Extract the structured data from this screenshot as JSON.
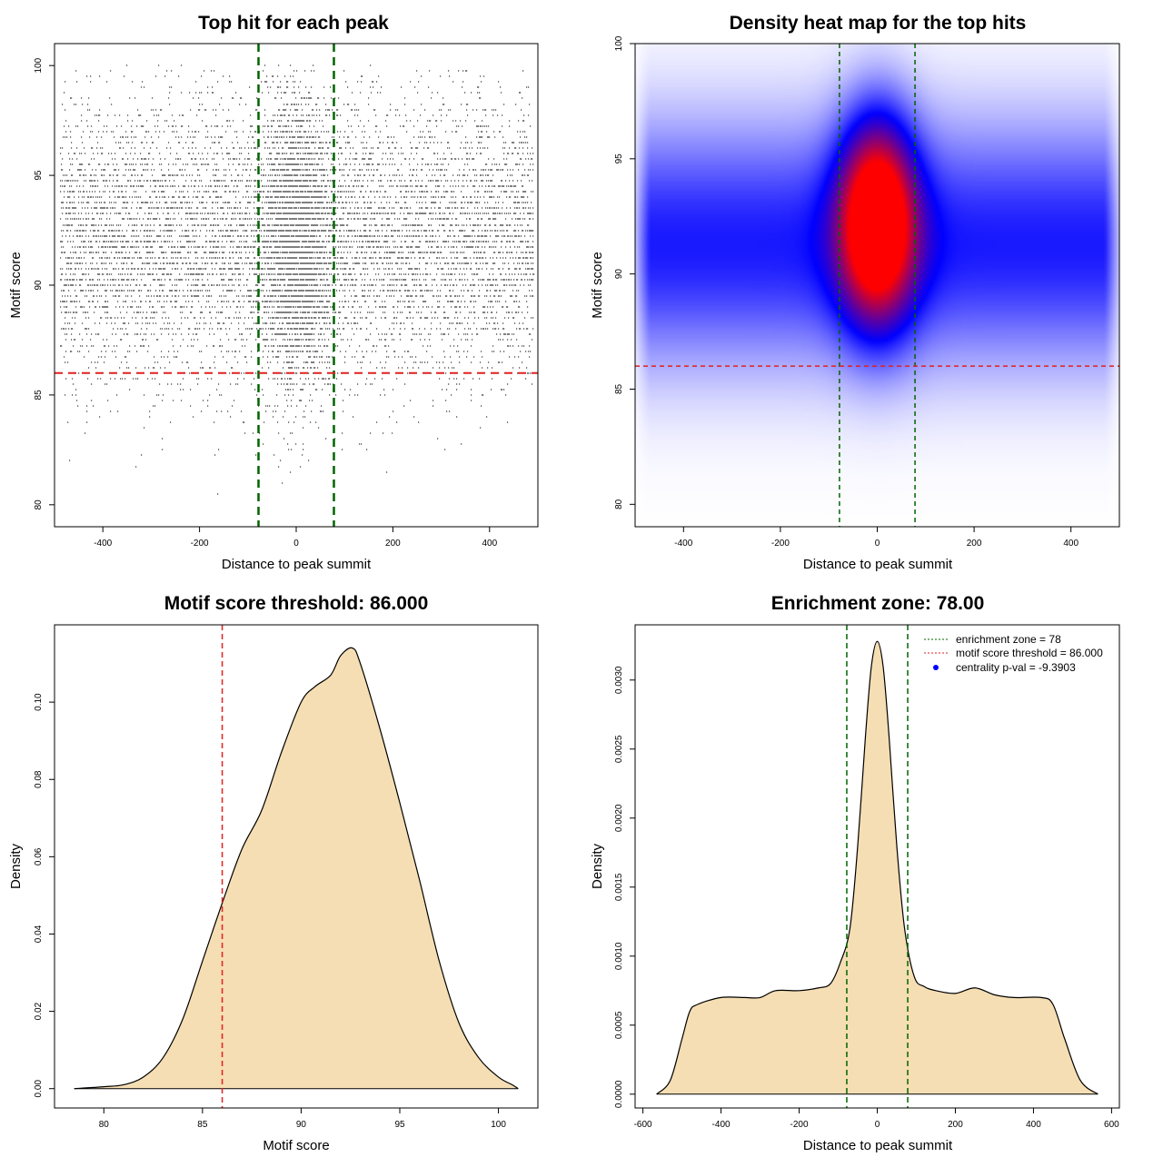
{
  "chart_data": [
    {
      "type": "scatter",
      "title": "Top hit for each peak",
      "xlabel": "Distance to peak summit",
      "ylabel": "Motif score",
      "xlim": [
        -500,
        500
      ],
      "ylim": [
        79,
        101
      ],
      "xticks": [
        "-400",
        "-200",
        "0",
        "200",
        "400"
      ],
      "yticks": [
        "80",
        "85",
        "90",
        "95",
        "100"
      ],
      "description_values": {
        "points_approx": 12000,
        "x_range": [
          -490,
          490
        ],
        "y_range": [
          79.5,
          100
        ],
        "central_concentration_x": 0,
        "central_concentration_y": 92
      },
      "vlines": [
        -78,
        78
      ],
      "hline": 86,
      "vline_color": "#006400",
      "hline_color": "#e02020",
      "point_color": "#000000"
    },
    {
      "type": "heatmap",
      "title": "Density heat map for the top hits",
      "xlabel": "Distance to peak summit",
      "ylabel": "Motif score",
      "xlim": [
        -500,
        500
      ],
      "ylim": [
        79.5,
        100
      ],
      "xticks": [
        "-400",
        "-200",
        "0",
        "200",
        "400"
      ],
      "yticks": [
        "80",
        "85",
        "90",
        "95",
        "100"
      ],
      "peak": {
        "x": 0,
        "y": 92.5
      },
      "colors": [
        "#ffffff",
        "#0000ff",
        "#ff0000"
      ],
      "vlines": [
        -78,
        78
      ],
      "hline": 86,
      "vline_color": "#006400",
      "hline_color": "#e02020"
    },
    {
      "type": "area",
      "title": "Motif score threshold: 86.000",
      "xlabel": "Motif score",
      "ylabel": "Density",
      "xlim": [
        77.5,
        102
      ],
      "ylim": [
        -0.005,
        0.12
      ],
      "xticks": [
        "80",
        "85",
        "90",
        "95",
        "100"
      ],
      "yticks": [
        "0.00",
        "0.02",
        "0.04",
        "0.06",
        "0.08",
        "0.10"
      ],
      "x": [
        78.5,
        80,
        81,
        82,
        83,
        84,
        85,
        86,
        87,
        88,
        89,
        90,
        90.7,
        91.5,
        92,
        92.6,
        93,
        94,
        95,
        96,
        97,
        98,
        99,
        100,
        100.7,
        101
      ],
      "y": [
        0,
        0.0005,
        0.001,
        0.003,
        0.008,
        0.018,
        0.033,
        0.048,
        0.062,
        0.072,
        0.087,
        0.1,
        0.104,
        0.107,
        0.112,
        0.114,
        0.11,
        0.093,
        0.074,
        0.054,
        0.033,
        0.017,
        0.008,
        0.003,
        0.001,
        0
      ],
      "vline": 86,
      "fill": "#f5deb3",
      "vline_color": "#e02020"
    },
    {
      "type": "area",
      "title": "Enrichment zone: 78.00",
      "xlabel": "Distance to peak summit",
      "ylabel": "Density",
      "xlim": [
        -620,
        620
      ],
      "ylim": [
        -0.0001,
        0.0034
      ],
      "xticks": [
        "-600",
        "-400",
        "-200",
        "0",
        "200",
        "400",
        "600"
      ],
      "yticks": [
        "0.0000",
        "0.0005",
        "0.0010",
        "0.0015",
        "0.0020",
        "0.0025",
        "0.0030"
      ],
      "x": [
        -565,
        -530,
        -500,
        -480,
        -460,
        -400,
        -340,
        -300,
        -260,
        -200,
        -150,
        -120,
        -95,
        -70,
        -50,
        -30,
        -15,
        0,
        15,
        30,
        50,
        70,
        95,
        120,
        150,
        200,
        250,
        300,
        350,
        420,
        450,
        480,
        520,
        565
      ],
      "y": [
        0,
        0.0001,
        0.0004,
        0.0006,
        0.00065,
        0.0007,
        0.0007,
        0.0007,
        0.00075,
        0.00075,
        0.00077,
        0.0008,
        0.00095,
        0.0012,
        0.0018,
        0.0026,
        0.0031,
        0.00328,
        0.0031,
        0.0026,
        0.0018,
        0.0012,
        0.00085,
        0.00078,
        0.00075,
        0.00073,
        0.00077,
        0.00072,
        0.0007,
        0.0007,
        0.00065,
        0.0004,
        0.0001,
        0
      ],
      "vlines": [
        -78,
        78
      ],
      "fill": "#f5deb3",
      "vline_color": "#006400",
      "legend": {
        "position": "top-right",
        "entries": [
          {
            "label": "enrichment zone = 78",
            "color": "#006400",
            "style": "dotted-line"
          },
          {
            "label": "motif score threshold = 86.000",
            "color": "#e02020",
            "style": "dotted-line"
          },
          {
            "label": "centrality p-val = -9.3903",
            "color": "#0000ff",
            "style": "point"
          }
        ]
      }
    }
  ]
}
